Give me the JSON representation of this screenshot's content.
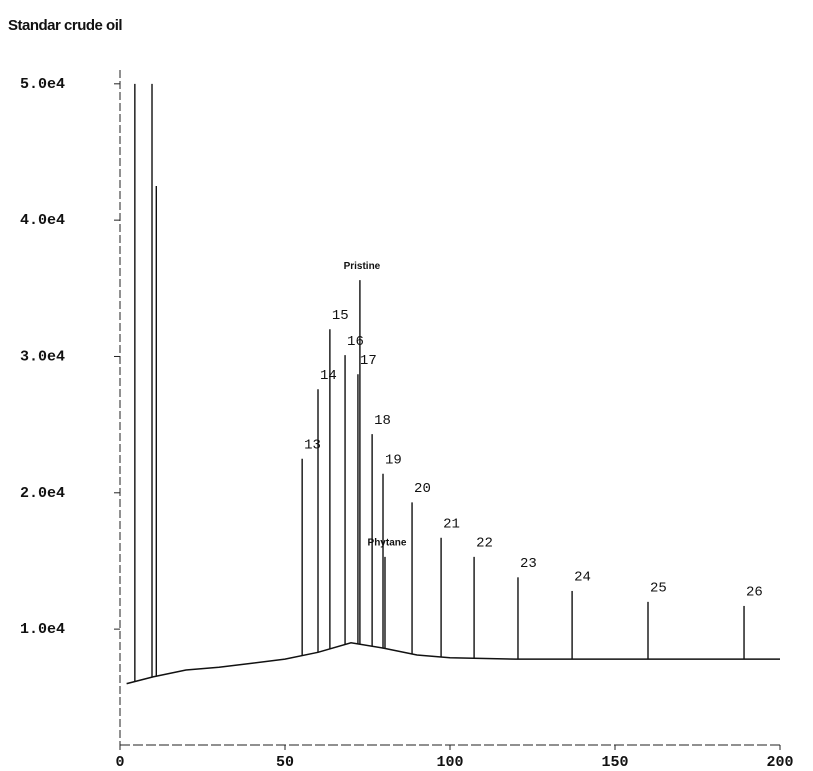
{
  "chart_data": {
    "type": "line",
    "title": "Standar crude oil",
    "x": [
      2,
      10,
      20,
      30,
      40,
      50,
      60,
      70,
      80,
      90,
      100,
      120,
      150,
      200
    ],
    "values": [
      6000,
      6500,
      7000,
      7200,
      7500,
      7800,
      8300,
      9000,
      8600,
      8100,
      7900,
      7800,
      7800,
      7800
    ],
    "peaks": {
      "x": [
        4.5,
        9.7,
        11.0,
        55.2,
        60.0,
        63.6,
        68.2,
        72.1,
        72.7,
        76.4,
        79.7,
        80.3,
        88.5,
        97.3,
        107.3,
        120.6,
        137.0,
        160.0,
        189.1
      ],
      "values": [
        50000,
        50000,
        42500,
        22500,
        27600,
        32000,
        30100,
        28700,
        35600,
        24300,
        21400,
        15300,
        19300,
        16700,
        15300,
        13800,
        12800,
        12000,
        11700
      ],
      "labels": [
        null,
        null,
        null,
        "13",
        "14",
        "15",
        "16",
        "17",
        "Pristine",
        "18",
        "19",
        "Phytane",
        "20",
        "21",
        "22",
        "23",
        "24",
        "25",
        "26"
      ]
    },
    "xlim": [
      0,
      200
    ],
    "xticks": [
      0,
      50,
      100,
      150,
      200
    ],
    "ylim": [
      1500,
      50500
    ],
    "yticks": [
      {
        "value": 10000,
        "label": "1.0e4"
      },
      {
        "value": 20000,
        "label": "2.0e4"
      },
      {
        "value": 30000,
        "label": "3.0e4"
      },
      {
        "value": 40000,
        "label": "4.0e4"
      },
      {
        "value": 50000,
        "label": "5.0e4"
      }
    ],
    "color": "#111111"
  }
}
